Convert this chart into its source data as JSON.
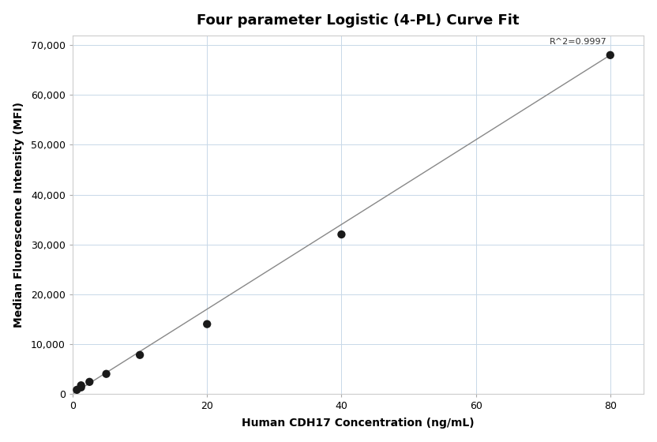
{
  "title": "Four parameter Logistic (4-PL) Curve Fit",
  "xlabel": "Human CDH17 Concentration (ng/mL)",
  "ylabel": "Median Fluorescence Intensity (MFI)",
  "scatter_x": [
    0.625,
    1.25,
    1.25,
    2.5,
    5.0,
    10.0,
    20.0,
    40.0,
    80.0
  ],
  "scatter_y": [
    800,
    1300,
    1700,
    2400,
    4000,
    7800,
    14000,
    32000,
    68000
  ],
  "line_x": [
    0,
    80
  ],
  "line_y": [
    0,
    68000
  ],
  "xlim": [
    0,
    85
  ],
  "ylim": [
    0,
    72000
  ],
  "yticks": [
    0,
    10000,
    20000,
    30000,
    40000,
    50000,
    60000,
    70000
  ],
  "xticks": [
    0,
    20,
    40,
    60,
    80
  ],
  "r_squared_text": "R^2=0.9997",
  "r_squared_x": 79.5,
  "r_squared_y": 71500,
  "dot_color": "#1a1a1a",
  "line_color": "#888888",
  "grid_color": "#c8d8e8",
  "background_color": "#ffffff",
  "title_fontsize": 13,
  "label_fontsize": 10,
  "tick_fontsize": 9,
  "annotation_fontsize": 8,
  "dot_size": 55
}
